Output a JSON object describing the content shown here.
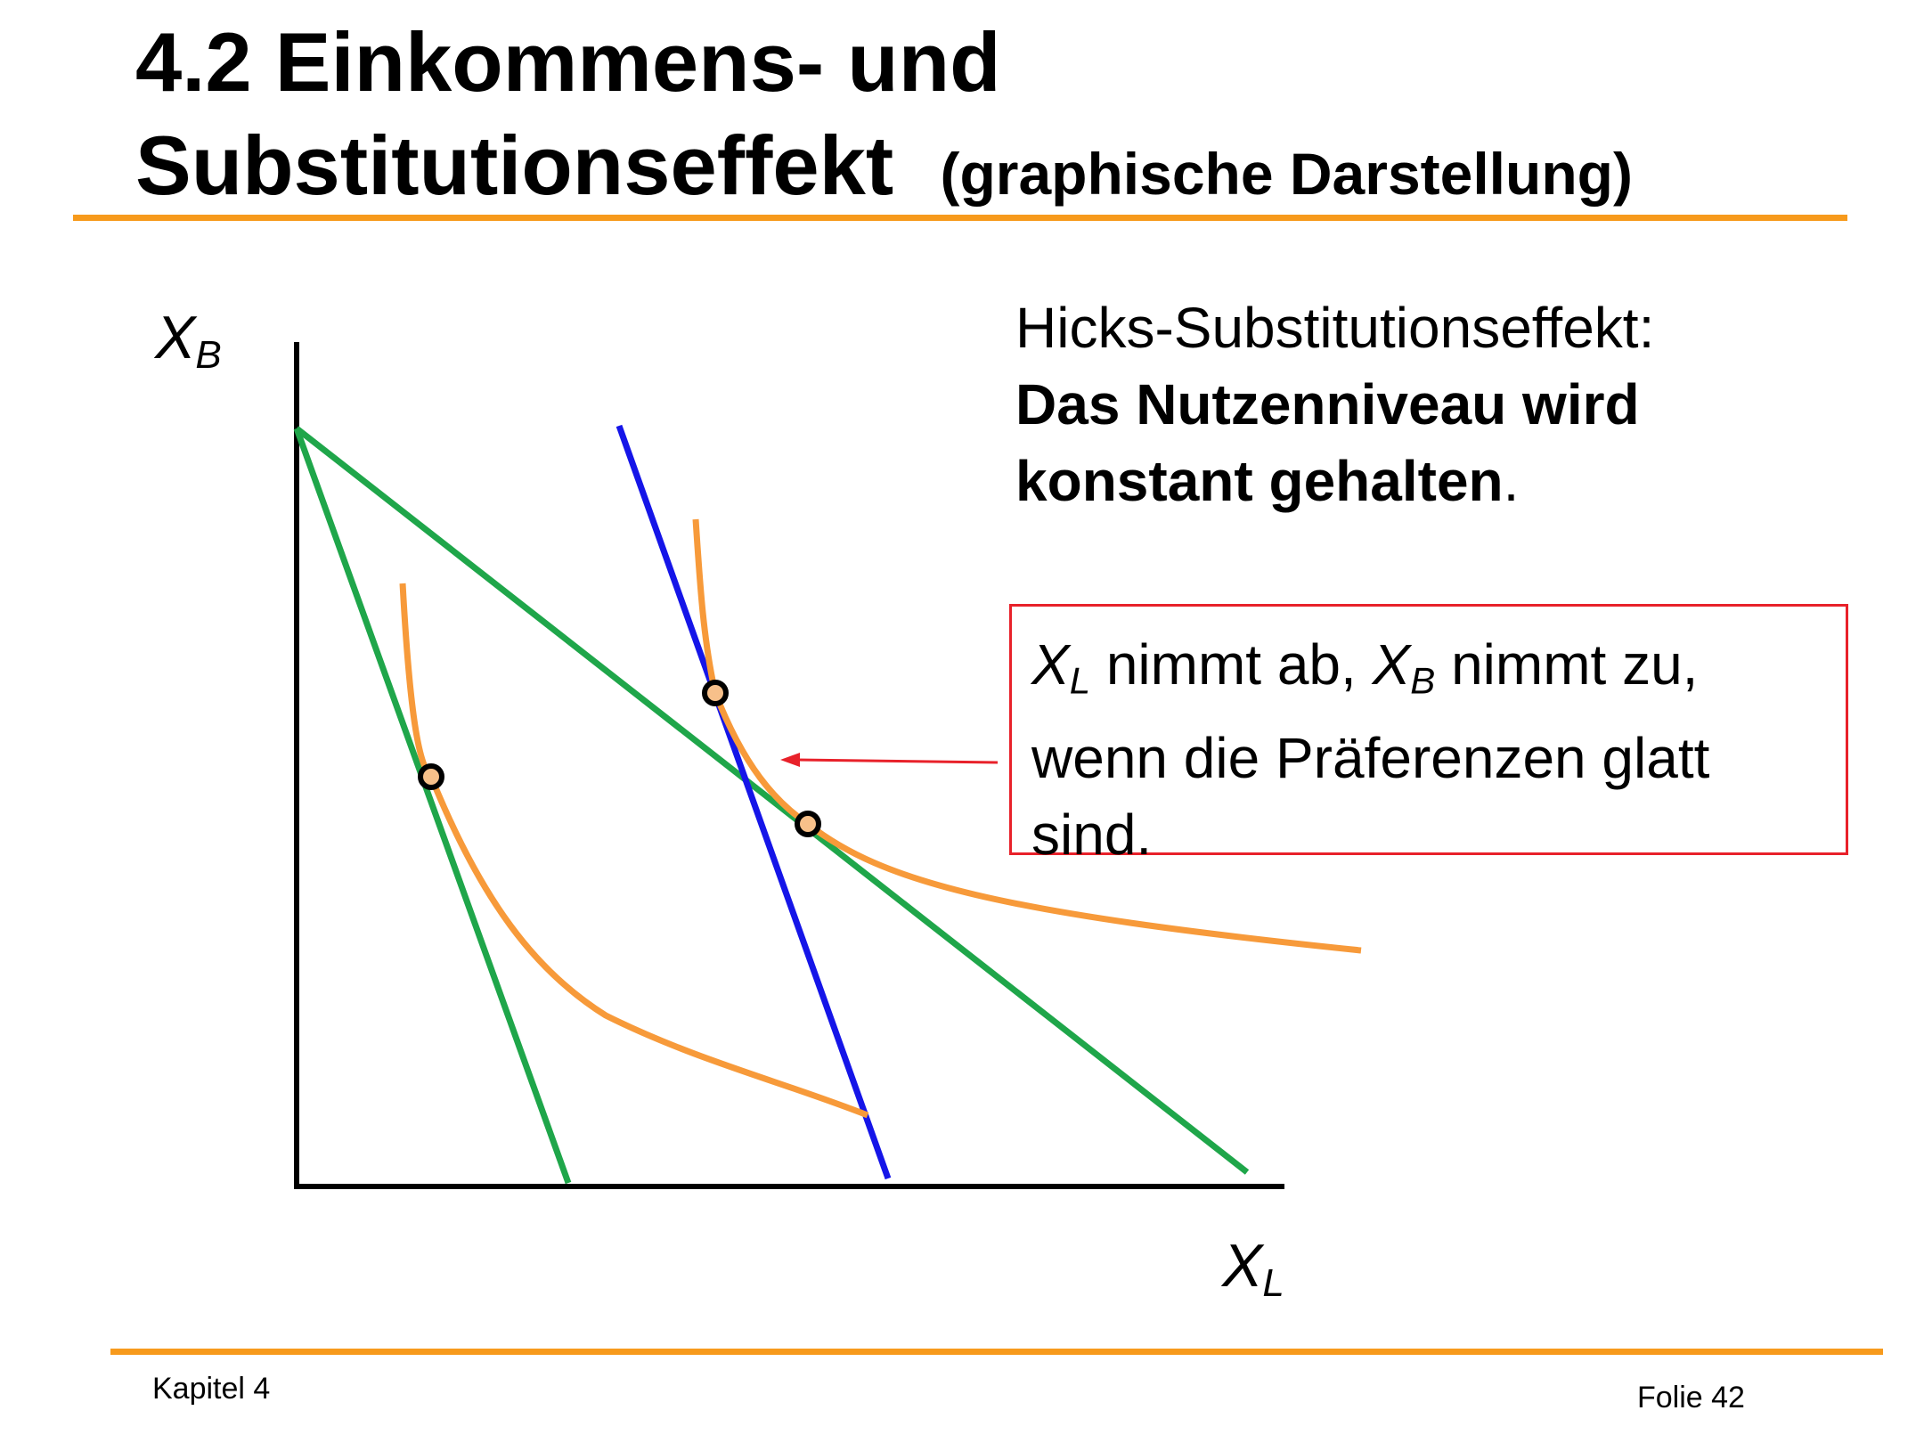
{
  "title": {
    "line1": "4.2 Einkommens- und",
    "line2": "Substitutionseffekt",
    "subtitle": "(graphische Darstellung)"
  },
  "axes": {
    "y_label": "X",
    "y_sub": "B",
    "x_label": "X",
    "x_sub": "L"
  },
  "hicks": {
    "line1": "Hicks-Substitutionseffekt:",
    "bold1": "Das Nutzenniveau wird",
    "bold2": "konstant gehalten",
    "period": "."
  },
  "note": {
    "var1": "X",
    "var1_sub": "L",
    "text1": " nimmt ab, ",
    "var2": "X",
    "var2_sub": "B",
    "text2": " nimmt zu,",
    "line2": "wenn die Präferenzen glatt",
    "line3": "sind."
  },
  "footer": {
    "left": "Kapitel 4",
    "right": "Folie 42"
  },
  "colors": {
    "accent": "#f79a1c",
    "budget_line": "#1fa64a",
    "compensated_line": "#1515e8",
    "indifference_curve": "#f79a3a",
    "note_border": "#e8212a"
  }
}
